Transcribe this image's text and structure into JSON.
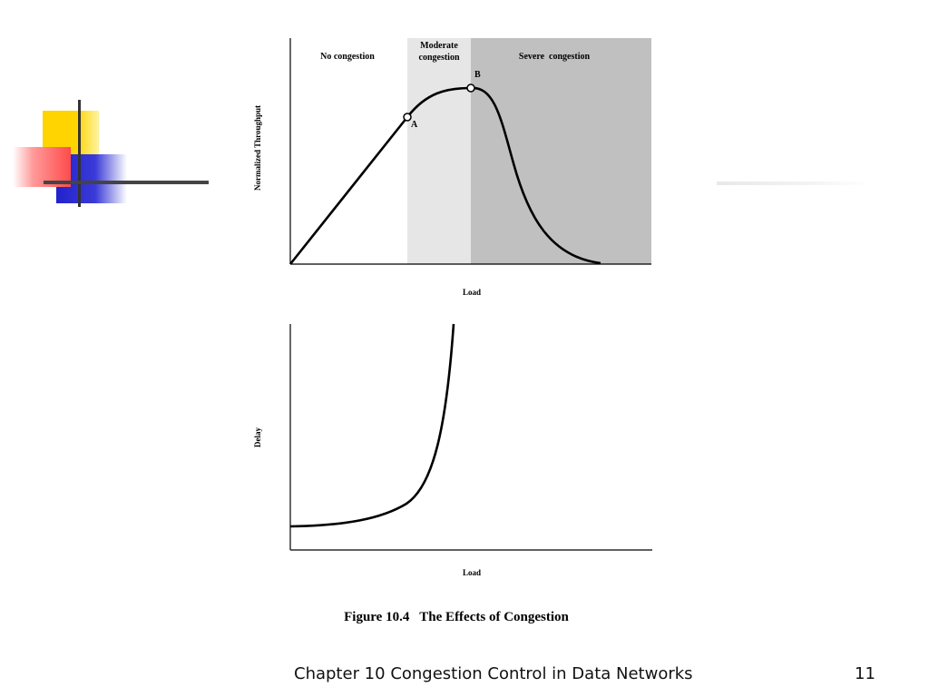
{
  "slide": {
    "footer_title": "Chapter 10 Congestion Control in Data Networks",
    "page_number": "11",
    "decor_colors": {
      "yellow": "#FFD400",
      "red": "#FF4B4B",
      "blue": "#2222CC",
      "line": "#333333"
    }
  },
  "figure": {
    "caption": "Figure 10.4   The Effects of Congestion",
    "throughput_chart": {
      "type": "line",
      "ylabel": "Normalized Throughput",
      "xlabel": "Load",
      "regions": [
        {
          "label_lines": [
            "No congestion"
          ],
          "shade": "#ffffff"
        },
        {
          "label_lines": [
            "Moderate",
            "congestion"
          ],
          "shade": "#e6e6e6"
        },
        {
          "label_lines": [
            "Severe  congestion"
          ],
          "shade": "#c0c0c0"
        }
      ],
      "points": [
        {
          "label": "A"
        },
        {
          "label": "B"
        }
      ]
    },
    "delay_chart": {
      "type": "line",
      "ylabel": "Delay",
      "xlabel": "Load"
    }
  }
}
